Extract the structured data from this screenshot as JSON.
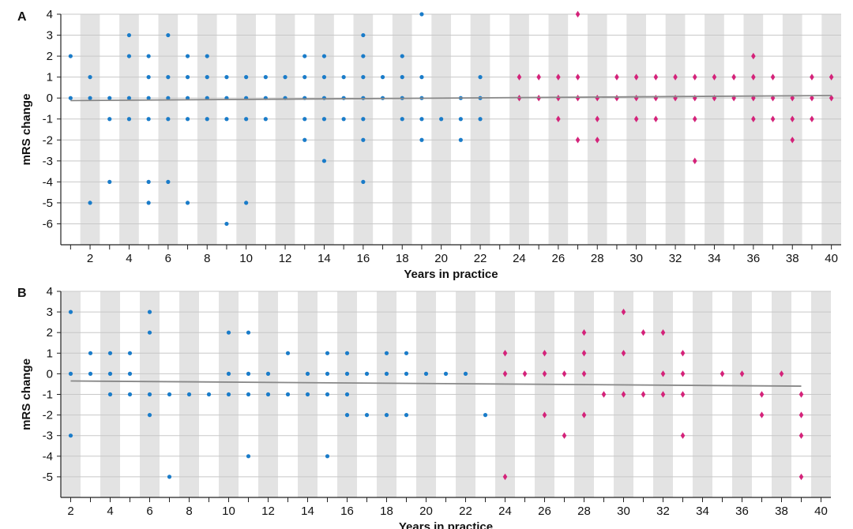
{
  "chart_data": [
    {
      "panel_label": "A",
      "type": "scatter",
      "xlabel": "Years in practice",
      "ylabel": "mRS change",
      "xlim": [
        0.5,
        40.5
      ],
      "ylim": [
        -7,
        4
      ],
      "x_ticks": [
        2,
        4,
        6,
        8,
        10,
        12,
        14,
        16,
        18,
        20,
        22,
        24,
        26,
        28,
        30,
        32,
        34,
        36,
        38,
        40
      ],
      "y_ticks": [
        4,
        3,
        2,
        1,
        0,
        -1,
        -2,
        -3,
        -4,
        -5,
        -6
      ],
      "alternating_column_shading": true,
      "grid": "horizontal",
      "series": [
        {
          "marker": "circle",
          "color": "#1a7cc9",
          "points": [
            [
              1,
              2
            ],
            [
              1,
              0
            ],
            [
              2,
              1
            ],
            [
              2,
              0
            ],
            [
              2,
              -5
            ],
            [
              3,
              0
            ],
            [
              3,
              -1
            ],
            [
              3,
              -4
            ],
            [
              4,
              3
            ],
            [
              4,
              2
            ],
            [
              4,
              0
            ],
            [
              4,
              -1
            ],
            [
              5,
              2
            ],
            [
              5,
              1
            ],
            [
              5,
              0
            ],
            [
              5,
              -1
            ],
            [
              5,
              -4
            ],
            [
              5,
              -5
            ],
            [
              6,
              3
            ],
            [
              6,
              1
            ],
            [
              6,
              0
            ],
            [
              6,
              -1
            ],
            [
              6,
              -4
            ],
            [
              7,
              2
            ],
            [
              7,
              1
            ],
            [
              7,
              0
            ],
            [
              7,
              -1
            ],
            [
              7,
              -5
            ],
            [
              8,
              2
            ],
            [
              8,
              1
            ],
            [
              8,
              0
            ],
            [
              8,
              -1
            ],
            [
              9,
              1
            ],
            [
              9,
              0
            ],
            [
              9,
              -1
            ],
            [
              9,
              -6
            ],
            [
              10,
              1
            ],
            [
              10,
              0
            ],
            [
              10,
              -1
            ],
            [
              10,
              -5
            ],
            [
              11,
              1
            ],
            [
              11,
              0
            ],
            [
              11,
              -1
            ],
            [
              12,
              1
            ],
            [
              12,
              0
            ],
            [
              13,
              2
            ],
            [
              13,
              1
            ],
            [
              13,
              0
            ],
            [
              13,
              -1
            ],
            [
              13,
              -2
            ],
            [
              14,
              2
            ],
            [
              14,
              1
            ],
            [
              14,
              0
            ],
            [
              14,
              -1
            ],
            [
              14,
              -3
            ],
            [
              15,
              1
            ],
            [
              15,
              0
            ],
            [
              15,
              -1
            ],
            [
              16,
              3
            ],
            [
              16,
              2
            ],
            [
              16,
              1
            ],
            [
              16,
              0
            ],
            [
              16,
              -1
            ],
            [
              16,
              -2
            ],
            [
              16,
              -4
            ],
            [
              17,
              1
            ],
            [
              17,
              0
            ],
            [
              18,
              2
            ],
            [
              18,
              1
            ],
            [
              18,
              0
            ],
            [
              18,
              -1
            ],
            [
              19,
              4
            ],
            [
              19,
              1
            ],
            [
              19,
              0
            ],
            [
              19,
              -1
            ],
            [
              19,
              -2
            ],
            [
              20,
              -1
            ],
            [
              21,
              0
            ],
            [
              21,
              -1
            ],
            [
              21,
              -2
            ],
            [
              22,
              1
            ],
            [
              22,
              0
            ],
            [
              22,
              -1
            ]
          ]
        },
        {
          "marker": "diamond",
          "color": "#d4237a",
          "points": [
            [
              24,
              1
            ],
            [
              24,
              0
            ],
            [
              25,
              1
            ],
            [
              25,
              0
            ],
            [
              26,
              1
            ],
            [
              26,
              0
            ],
            [
              26,
              -1
            ],
            [
              27,
              4
            ],
            [
              27,
              1
            ],
            [
              27,
              0
            ],
            [
              27,
              -2
            ],
            [
              28,
              0
            ],
            [
              28,
              -1
            ],
            [
              28,
              -2
            ],
            [
              29,
              1
            ],
            [
              29,
              0
            ],
            [
              30,
              1
            ],
            [
              30,
              0
            ],
            [
              30,
              -1
            ],
            [
              31,
              1
            ],
            [
              31,
              0
            ],
            [
              31,
              -1
            ],
            [
              32,
              1
            ],
            [
              32,
              0
            ],
            [
              33,
              1
            ],
            [
              33,
              0
            ],
            [
              33,
              -1
            ],
            [
              33,
              -3
            ],
            [
              34,
              1
            ],
            [
              34,
              0
            ],
            [
              35,
              1
            ],
            [
              35,
              0
            ],
            [
              36,
              2
            ],
            [
              36,
              1
            ],
            [
              36,
              0
            ],
            [
              36,
              -1
            ],
            [
              37,
              1
            ],
            [
              37,
              0
            ],
            [
              37,
              -1
            ],
            [
              38,
              0
            ],
            [
              38,
              -1
            ],
            [
              38,
              -2
            ],
            [
              39,
              1
            ],
            [
              39,
              0
            ],
            [
              39,
              -1
            ],
            [
              40,
              1
            ],
            [
              40,
              0
            ]
          ]
        }
      ],
      "trend_line": {
        "color": "#888888",
        "x": [
          1,
          40
        ],
        "y": [
          -0.12,
          0.12
        ]
      }
    },
    {
      "panel_label": "B",
      "type": "scatter",
      "xlabel": "Years in practice",
      "ylabel": "mRS change",
      "xlim": [
        1.5,
        40.5
      ],
      "ylim": [
        -6,
        4
      ],
      "x_ticks": [
        2,
        4,
        6,
        8,
        10,
        12,
        14,
        16,
        18,
        20,
        22,
        24,
        26,
        28,
        30,
        32,
        34,
        36,
        38,
        40
      ],
      "y_ticks": [
        4,
        3,
        2,
        1,
        0,
        -1,
        -2,
        -3,
        -4,
        -5
      ],
      "alternating_column_shading": true,
      "grid": "horizontal",
      "series": [
        {
          "marker": "circle",
          "color": "#1a7cc9",
          "points": [
            [
              2,
              3
            ],
            [
              2,
              0
            ],
            [
              2,
              -3
            ],
            [
              3,
              1
            ],
            [
              3,
              0
            ],
            [
              4,
              1
            ],
            [
              4,
              0
            ],
            [
              4,
              -1
            ],
            [
              5,
              1
            ],
            [
              5,
              0
            ],
            [
              5,
              -1
            ],
            [
              6,
              3
            ],
            [
              6,
              2
            ],
            [
              6,
              -1
            ],
            [
              6,
              -2
            ],
            [
              7,
              -1
            ],
            [
              7,
              -5
            ],
            [
              8,
              -1
            ],
            [
              9,
              -1
            ],
            [
              10,
              2
            ],
            [
              10,
              0
            ],
            [
              10,
              -1
            ],
            [
              11,
              2
            ],
            [
              11,
              0
            ],
            [
              11,
              -1
            ],
            [
              11,
              -4
            ],
            [
              12,
              0
            ],
            [
              12,
              -1
            ],
            [
              13,
              1
            ],
            [
              13,
              -1
            ],
            [
              14,
              0
            ],
            [
              14,
              -1
            ],
            [
              15,
              1
            ],
            [
              15,
              0
            ],
            [
              15,
              -1
            ],
            [
              15,
              -4
            ],
            [
              16,
              1
            ],
            [
              16,
              0
            ],
            [
              16,
              -1
            ],
            [
              16,
              -2
            ],
            [
              17,
              0
            ],
            [
              17,
              -2
            ],
            [
              18,
              1
            ],
            [
              18,
              0
            ],
            [
              18,
              -2
            ],
            [
              19,
              1
            ],
            [
              19,
              0
            ],
            [
              19,
              -2
            ],
            [
              20,
              0
            ],
            [
              21,
              0
            ],
            [
              22,
              0
            ],
            [
              23,
              -2
            ]
          ]
        },
        {
          "marker": "diamond",
          "color": "#d4237a",
          "points": [
            [
              24,
              1
            ],
            [
              24,
              0
            ],
            [
              24,
              -5
            ],
            [
              25,
              0
            ],
            [
              26,
              1
            ],
            [
              26,
              0
            ],
            [
              26,
              -2
            ],
            [
              27,
              0
            ],
            [
              27,
              -3
            ],
            [
              28,
              2
            ],
            [
              28,
              1
            ],
            [
              28,
              0
            ],
            [
              28,
              -2
            ],
            [
              29,
              -1
            ],
            [
              30,
              3
            ],
            [
              30,
              1
            ],
            [
              30,
              -1
            ],
            [
              31,
              2
            ],
            [
              31,
              -1
            ],
            [
              32,
              2
            ],
            [
              32,
              0
            ],
            [
              32,
              -1
            ],
            [
              33,
              1
            ],
            [
              33,
              0
            ],
            [
              33,
              -1
            ],
            [
              33,
              -3
            ],
            [
              35,
              0
            ],
            [
              36,
              0
            ],
            [
              37,
              -1
            ],
            [
              37,
              -2
            ],
            [
              38,
              0
            ],
            [
              39,
              -1
            ],
            [
              39,
              -2
            ],
            [
              39,
              -3
            ],
            [
              39,
              -5
            ]
          ]
        }
      ],
      "trend_line": {
        "color": "#888888",
        "x": [
          2,
          39
        ],
        "y": [
          -0.35,
          -0.6
        ]
      }
    }
  ]
}
